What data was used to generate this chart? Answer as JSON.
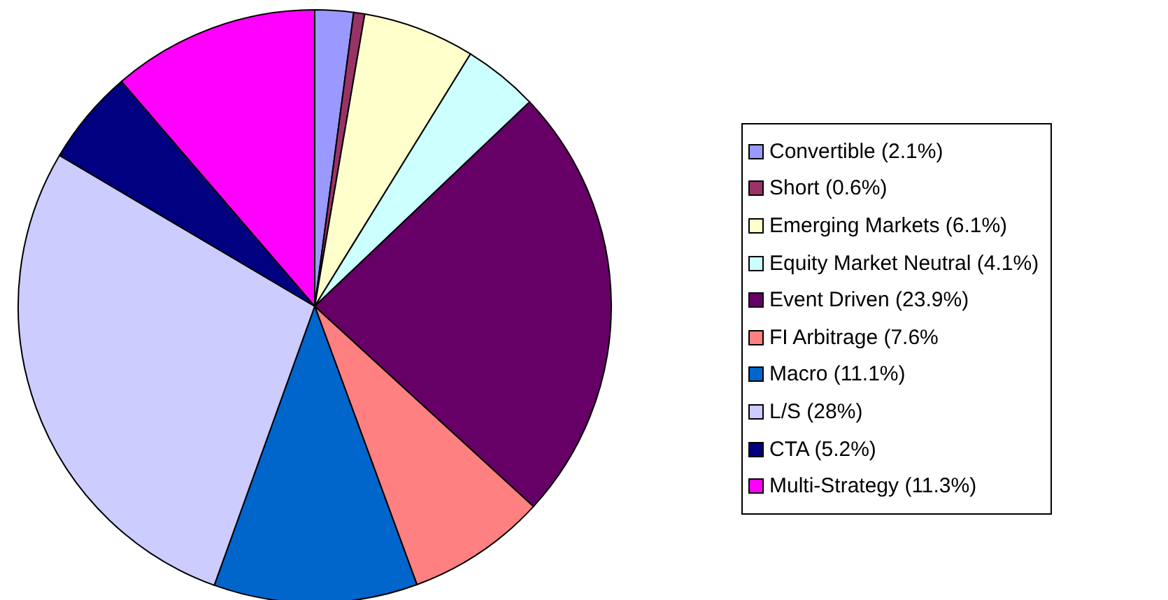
{
  "chart_data": {
    "type": "pie",
    "categories": [
      "Convertible (2.1%)",
      "Short (0.6%)",
      "Emerging Markets (6.1%)",
      "Equity Market Neutral (4.1%)",
      "Event Driven (23.9%)",
      "FI Arbitrage (7.6%",
      "Macro (11.1%)",
      "L/S (28%)",
      "CTA (5.2%)",
      "Multi-Strategy (11.3%)"
    ],
    "values": [
      2.1,
      0.6,
      6.1,
      4.1,
      23.9,
      7.6,
      11.1,
      28,
      5.2,
      11.3
    ],
    "colors": [
      "#9999ff",
      "#993366",
      "#ffffcc",
      "#ccffff",
      "#660066",
      "#ff8080",
      "#0066cc",
      "#ccccff",
      "#000080",
      "#ff00ff"
    ],
    "legend": "right"
  }
}
